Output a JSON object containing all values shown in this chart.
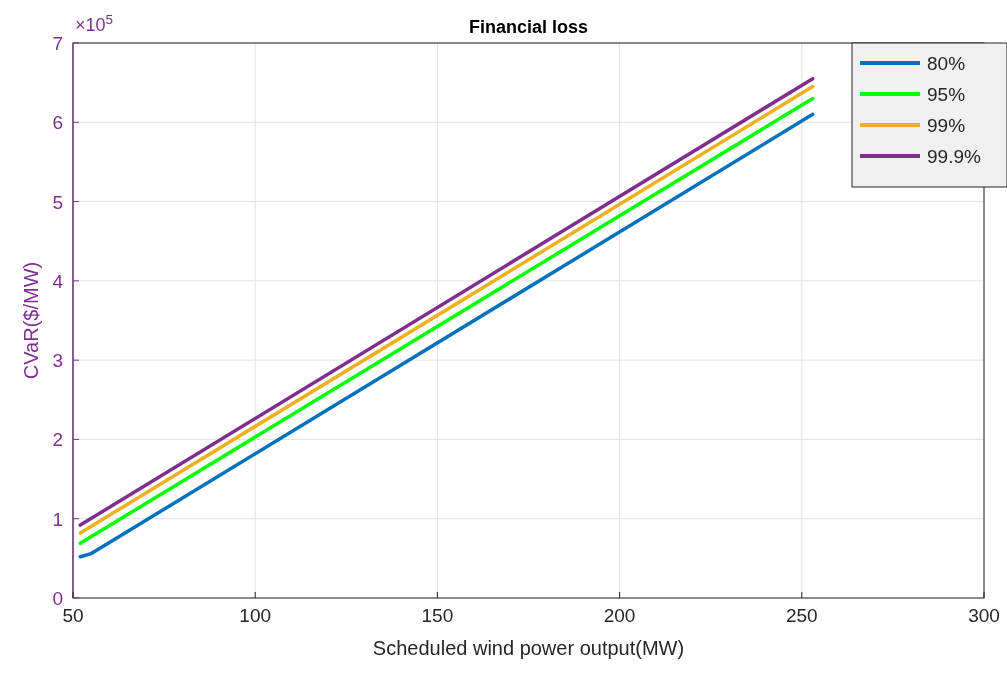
{
  "chart_data": {
    "type": "line",
    "title": "Financial loss",
    "xlabel": "Scheduled wind power output(MW)",
    "ylabel": "CVaR($/MW)",
    "annotations": [
      "×10$^{5}$"
    ],
    "xlim": [
      50,
      300
    ],
    "xticks": [
      50,
      100,
      150,
      200,
      250,
      300
    ],
    "ylim": [
      0,
      7
    ],
    "yticks": [
      0,
      1,
      2,
      3,
      4,
      5,
      6,
      7
    ],
    "grid": true,
    "legend": "top right",
    "line_style": "solid",
    "series": [
      {
        "name": "80%",
        "color": "#0072bd",
        "x": [
          52,
          55,
          60,
          253
        ],
        "values": [
          0.52,
          0.56,
          0.7,
          6.1
        ]
      },
      {
        "name": "95%",
        "color": "#00ff00",
        "x": [
          52,
          253
        ],
        "values": [
          0.69,
          6.3
        ]
      },
      {
        "name": "99%",
        "color": "#edb120",
        "x": [
          52,
          253
        ],
        "values": [
          0.82,
          6.45
        ]
      },
      {
        "name": "99.9%",
        "color": "#7e2f8e",
        "x": [
          52,
          253
        ],
        "values": [
          0.92,
          6.55
        ]
      }
    ]
  }
}
